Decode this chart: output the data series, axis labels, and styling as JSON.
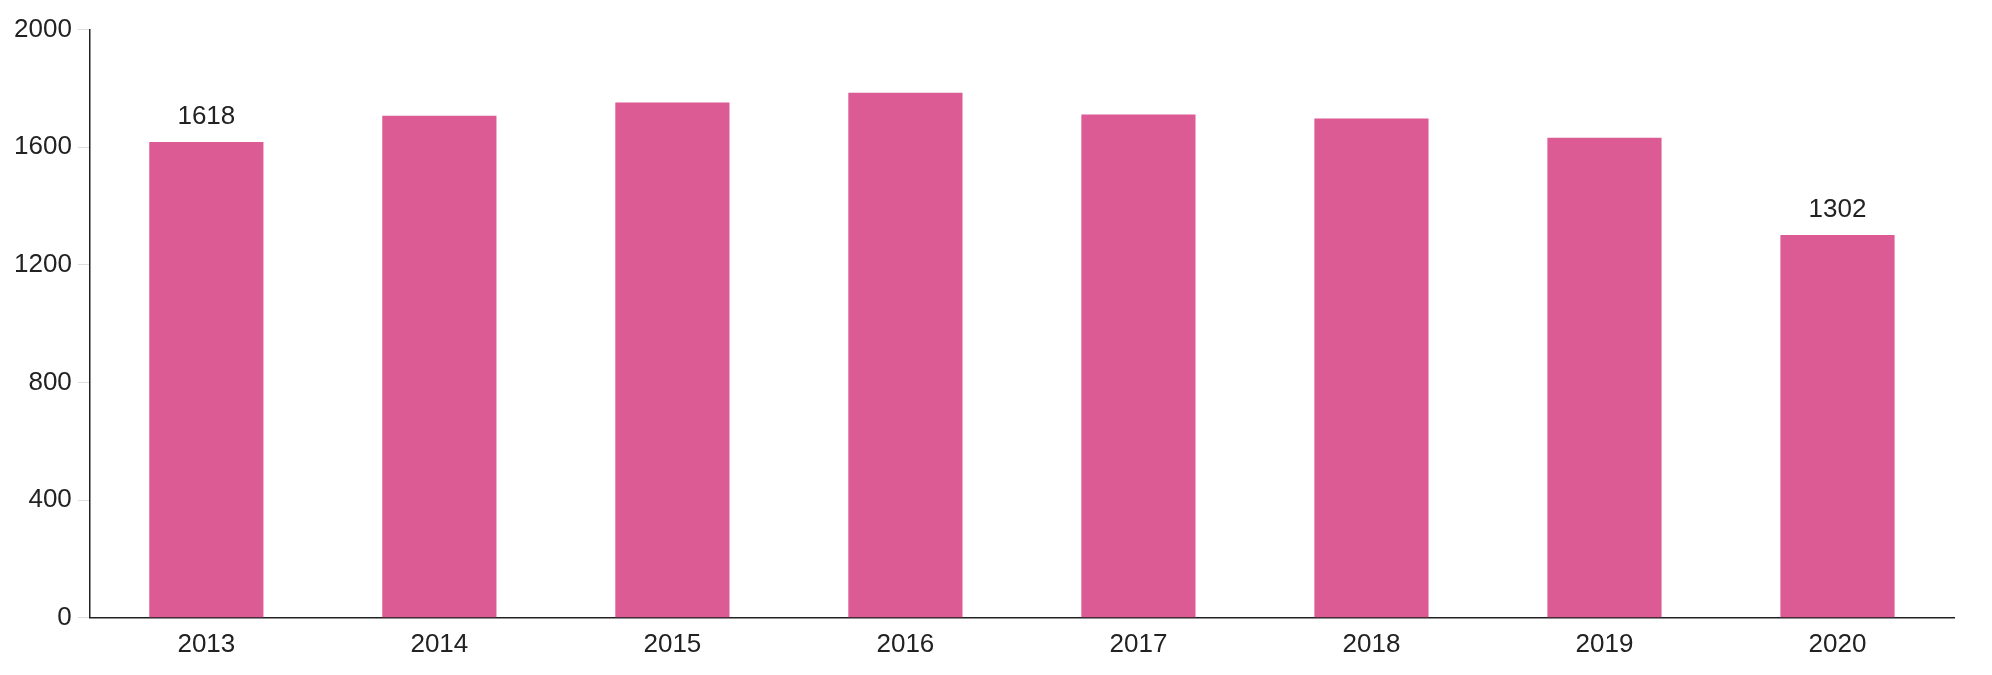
{
  "chart_data": {
    "type": "bar",
    "categories": [
      "2013",
      "2014",
      "2015",
      "2016",
      "2017",
      "2018",
      "2019",
      "2020"
    ],
    "values": [
      1618,
      1707,
      1752,
      1785,
      1711,
      1698,
      1632,
      1302
    ],
    "value_labels": [
      "1618",
      null,
      null,
      null,
      null,
      null,
      null,
      "1302"
    ],
    "color": "#dc5b94",
    "ylim": [
      0,
      2000
    ],
    "yticks": [
      0,
      400,
      800,
      1200,
      1600,
      2000
    ],
    "grid": false,
    "legend": false
  }
}
